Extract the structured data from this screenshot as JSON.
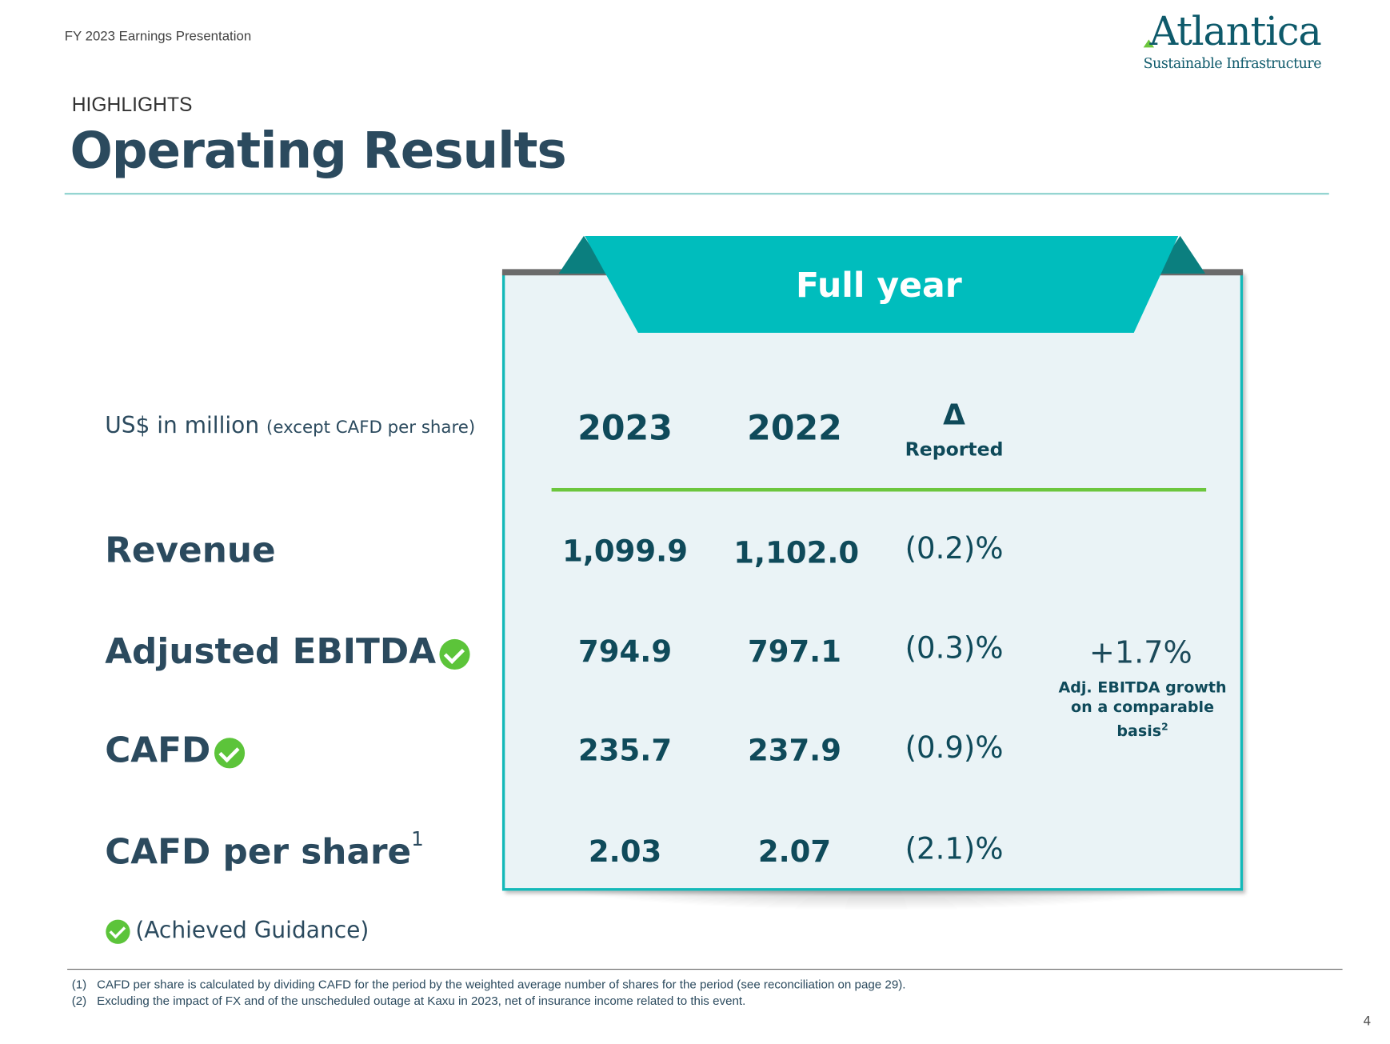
{
  "header": {
    "deck_title": "FY 2023 Earnings Presentation",
    "logo": {
      "name": "Atlantica",
      "tagline": "Sustainable Infrastructure"
    },
    "section": "HIGHLIGHTS",
    "title": "Operating Results"
  },
  "table": {
    "banner": "Full year",
    "units_main": "US$ in million",
    "units_note": "(except CAFD per share)",
    "columns": {
      "y2023": "2023",
      "y2022": "2022",
      "delta_symbol": "Δ",
      "delta_label": "Reported"
    },
    "rows": [
      {
        "label": "Revenue",
        "v2023": "1,099.9",
        "v2022": "1,102.0",
        "delta": "(0.2)%",
        "achieved": false
      },
      {
        "label": "Adjusted EBITDA",
        "v2023": "794.9",
        "v2022": "797.1",
        "delta": "(0.3)%",
        "achieved": true
      },
      {
        "label": "CAFD",
        "v2023": "235.7",
        "v2022": "237.9",
        "delta": "(0.9)%",
        "achieved": true
      },
      {
        "label": "CAFD per share",
        "sup": "1",
        "v2023": "2.03",
        "v2022": "2.07",
        "delta": "(2.1)%",
        "achieved": false
      }
    ],
    "growth": {
      "value": "+1.7%",
      "note": "Adj. EBITDA growth on a comparable basis",
      "sup": "2"
    }
  },
  "legend": {
    "achieved_label": "(Achieved Guidance)"
  },
  "footnotes": [
    {
      "num": "(1)",
      "text": "CAFD per share is calculated by dividing CAFD for the period by the weighted average number of shares for the period (see reconciliation on page 29)."
    },
    {
      "num": "(2)",
      "text": "Excluding the impact of FX and of the unscheduled outage at Kaxu in 2023, net of insurance income related to this event."
    }
  ],
  "page_number": "4",
  "colors": {
    "teal": "#00bdbd",
    "dark_teal": "#0b7f7f",
    "navy_text": "#0f4a5a",
    "green": "#6cc63d",
    "box_bg": "#eaf3f6"
  }
}
